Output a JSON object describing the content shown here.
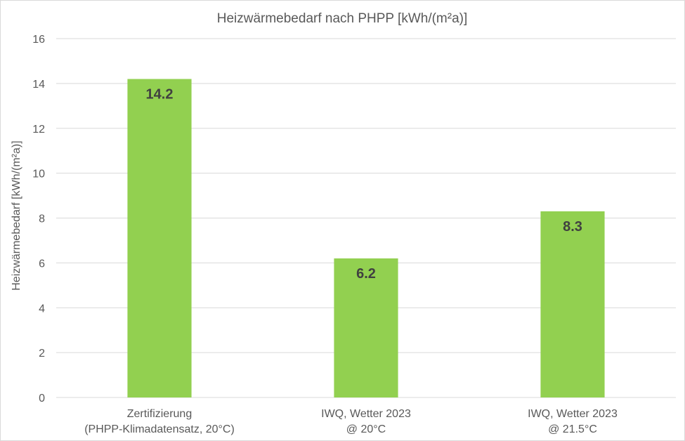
{
  "chart_data": {
    "type": "bar",
    "title": "Heizwärmebedarf  nach  PHPP [kWh/(m²a)]",
    "xlabel": "",
    "ylabel": "Heizwärmebedarf [kWh/(m²a)]",
    "ylim": [
      0,
      16
    ],
    "yticks": [
      0,
      2,
      4,
      6,
      8,
      10,
      12,
      14,
      16
    ],
    "grid": true,
    "legend": "none",
    "categories": [
      [
        "Zertifizierung",
        "(PHPP-Klimadatensatz, 20°C)"
      ],
      [
        "IWQ, Wetter 2023",
        "@ 20°C"
      ],
      [
        "IWQ, Wetter 2023",
        "@ 21.5°C"
      ]
    ],
    "values": [
      14.2,
      6.2,
      8.3
    ],
    "data_labels": [
      "14.2",
      "6.2",
      "8.3"
    ],
    "colors": {
      "bar": "#92d050",
      "grid": "#d9d9d9",
      "text": "#595959",
      "data_label": "#404040"
    }
  }
}
